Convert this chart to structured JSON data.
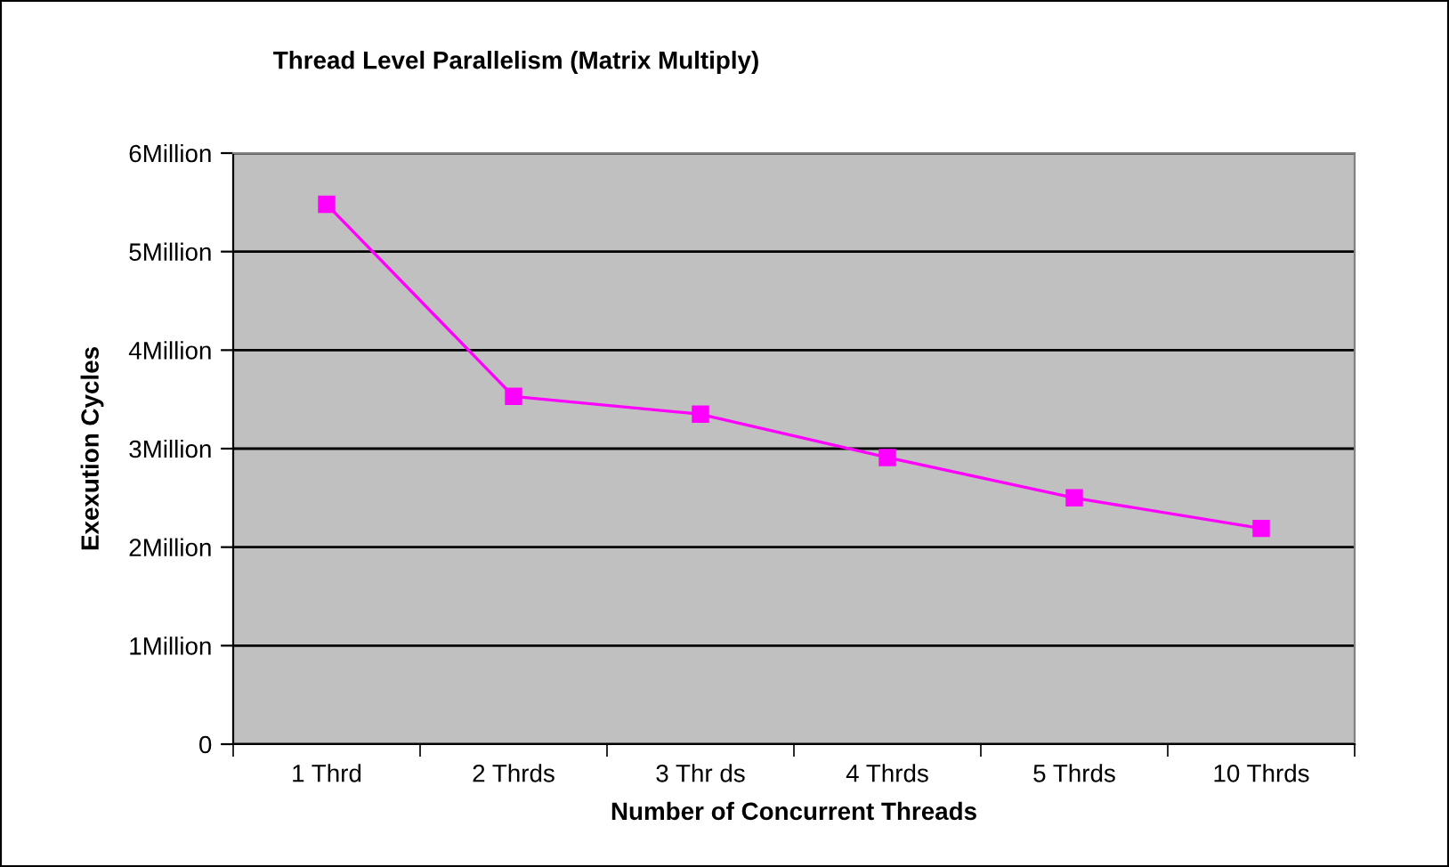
{
  "chart_data": {
    "type": "line",
    "title": "Thread Level Parallelism (Matrix Multiply)",
    "xlabel": "Number of Concurrent Threads",
    "ylabel": "Exexution Cycles",
    "categories": [
      "1 Thrd",
      "2 Thrds",
      "3 Thr ds",
      "4 Thrds",
      "5 Thrds",
      "10 Thrds"
    ],
    "series": [
      {
        "color": "#ff00ff",
        "values": [
          5.48,
          3.53,
          3.35,
          2.91,
          2.5,
          2.19
        ]
      }
    ],
    "ylim": [
      0,
      6
    ],
    "yticks": [
      0,
      {
        "value": 1,
        "label": "1Million"
      },
      {
        "value": 2,
        "label": "2Million"
      },
      {
        "value": 3,
        "label": "3Million"
      },
      {
        "value": 4,
        "label": "4Million"
      },
      {
        "value": 5,
        "label": "5Million"
      },
      {
        "value": 6,
        "label": "6Million"
      }
    ],
    "grid": "y",
    "marker": "square",
    "line_style": "solid"
  }
}
